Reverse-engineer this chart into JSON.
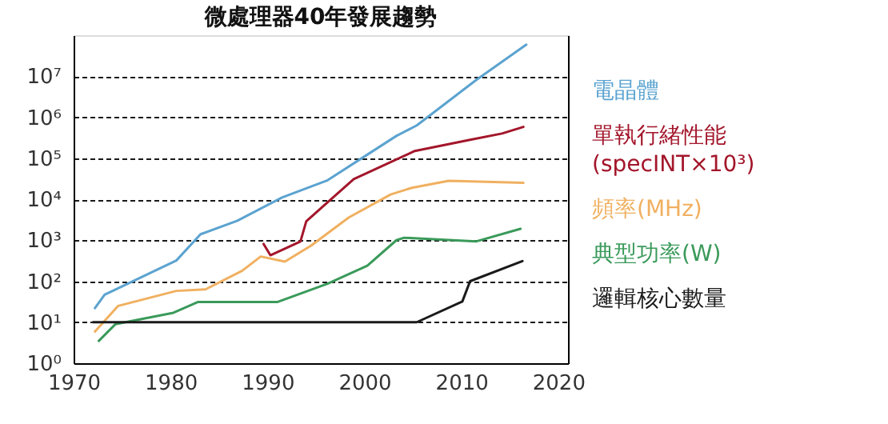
{
  "chart_data": {
    "type": "line",
    "title": "微處理器40年發展趨勢",
    "xlim": [
      1970,
      2021
    ],
    "xticks": [
      1970,
      1980,
      1990,
      2000,
      2010,
      2020
    ],
    "ylim": [
      1,
      100000000
    ],
    "log": "y",
    "yticks": [
      {
        "value": 1,
        "label": "10⁰"
      },
      {
        "value": 10,
        "label": "10¹"
      },
      {
        "value": 100,
        "label": "10²"
      },
      {
        "value": 1000,
        "label": "10³"
      },
      {
        "value": 10000,
        "label": "10⁴"
      },
      {
        "value": 100000,
        "label": "10⁵"
      },
      {
        "value": 1000000,
        "label": "10⁶"
      },
      {
        "value": 10000000,
        "label": "10⁷"
      }
    ],
    "grid": "y",
    "legend": "right",
    "marker": "none",
    "line_style": "solid",
    "series": [
      {
        "name": "電晶體",
        "color": "#5ba3d0",
        "x": [
          1972.2,
          1973.2,
          1980.6,
          1983.1,
          1986.9,
          1991.5,
          1996.2,
          2000.0,
          2003.3,
          2005.4,
          2011.5,
          2016.7
        ],
        "values": [
          22,
          47,
          320,
          1400,
          3000,
          11000,
          29000,
          110000,
          350000,
          630000,
          8000000,
          59000000
        ]
      },
      {
        "name": "單執行緒性能\n(specINT×10³)",
        "color": "#a3162b",
        "x": [
          1989.6,
          1990.3,
          1993.4,
          1994.0,
          1998.9,
          2005.2,
          2010.9,
          2014.2,
          2016.4
        ],
        "values": [
          810,
          430,
          930,
          2900,
          31000,
          150000,
          280000,
          400000,
          580000
        ]
      },
      {
        "name": "頻率(MHz)",
        "color": "#f0b060",
        "x": [
          1972.2,
          1974.6,
          1980.6,
          1983.6,
          1987.4,
          1989.3,
          1991.8,
          1994.5,
          1998.4,
          2002.7,
          2004.9,
          2008.7,
          2016.4
        ],
        "values": [
          5.9,
          25,
          58,
          63,
          180,
          400,
          300,
          740,
          3600,
          13000,
          19000,
          28000,
          25000
        ]
      },
      {
        "name": "典型功率(W)",
        "color": "#3a9a5a",
        "x": [
          1972.6,
          1974.3,
          1980.3,
          1982.8,
          1991.0,
          1996.2,
          2000.3,
          2003.3,
          2004.1,
          2011.5,
          2016.1
        ],
        "values": [
          3.5,
          8.9,
          17,
          31,
          31,
          87,
          240,
          1000,
          1150,
          930,
          1900
        ]
      },
      {
        "name": "邏輯核心數量",
        "color": "#1a1a1a",
        "x": [
          1972.0,
          2005.4,
          2010.1,
          2010.9,
          2016.3
        ],
        "values": [
          10,
          10,
          32,
          100,
          310
        ]
      }
    ]
  }
}
